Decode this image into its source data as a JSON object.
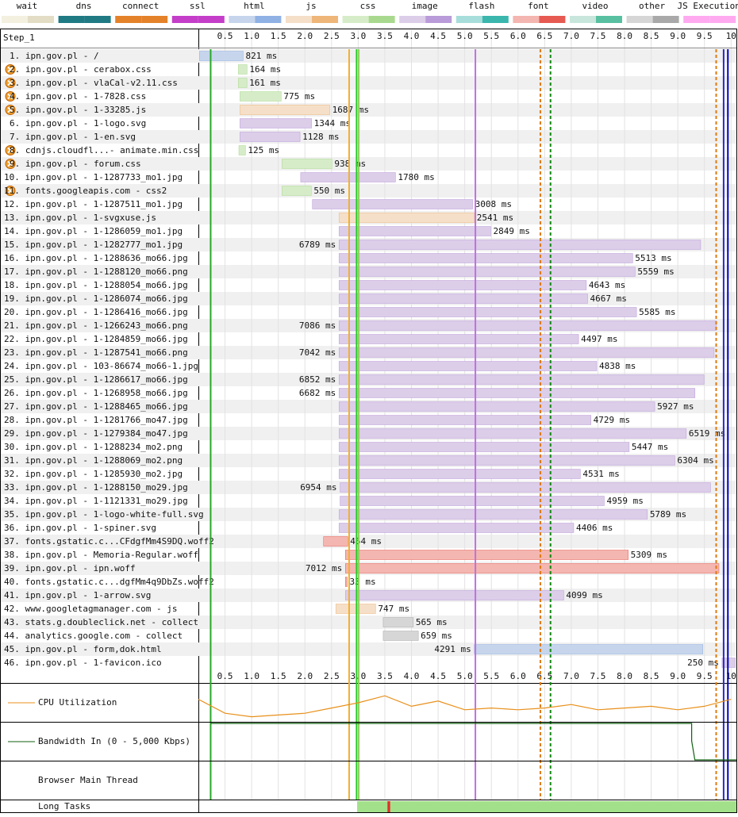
{
  "chart_data": {
    "type": "waterfall",
    "step_label": "Step_1",
    "legend": [
      {
        "name": "wait",
        "colors": [
          "#f3f0e0",
          "#e2ddc4"
        ]
      },
      {
        "name": "dns",
        "colors": [
          "#1f7a84",
          "#1f7a84"
        ]
      },
      {
        "name": "connect",
        "colors": [
          "#e4822a",
          "#e4822a"
        ]
      },
      {
        "name": "ssl",
        "colors": [
          "#c43ec9",
          "#c43ec9"
        ]
      },
      {
        "name": "html",
        "colors": [
          "#c6d5ec",
          "#8fb1e4"
        ]
      },
      {
        "name": "js",
        "colors": [
          "#f5dfc8",
          "#eeb679"
        ]
      },
      {
        "name": "css",
        "colors": [
          "#d6ecc8",
          "#a9d98e"
        ]
      },
      {
        "name": "image",
        "colors": [
          "#dccde9",
          "#b99bd9"
        ]
      },
      {
        "name": "flash",
        "colors": [
          "#a7dedb",
          "#3ab6ad"
        ]
      },
      {
        "name": "font",
        "colors": [
          "#f4b6b0",
          "#e65a52"
        ]
      },
      {
        "name": "video",
        "colors": [
          "#c8e6dc",
          "#58c0a0"
        ]
      },
      {
        "name": "other",
        "colors": [
          "#d6d6d6",
          "#a9a9a9"
        ]
      },
      {
        "name": "JS Execution",
        "colors": [
          "#ffaaf0",
          "#ffaaf0"
        ]
      }
    ],
    "xlim": [
      0,
      10.1
    ],
    "xticks": [
      0.5,
      {
        "value": 1,
        "label": "1.0"
      },
      1.5,
      {
        "value": 2,
        "label": "2.0"
      },
      2.5,
      {
        "value": 3,
        "label": "3.0"
      },
      3.5,
      {
        "value": 4,
        "label": "4.0"
      },
      4.5,
      {
        "value": 5,
        "label": "5.0"
      },
      5.5,
      {
        "value": 6,
        "label": "6.0"
      },
      6.5,
      {
        "value": 7,
        "label": "7.0"
      },
      7.5,
      {
        "value": 8,
        "label": "8.0"
      },
      8.5,
      {
        "value": 9,
        "label": "9.0"
      },
      9.5,
      10
    ],
    "requests": [
      {
        "label": "1. ipn.gov.pl - /",
        "start": 0.02,
        "duration": 821,
        "duration_label": "821 ms",
        "kind": "html",
        "warning": false
      },
      {
        "label": "2. ipn.gov.pl - cerabox.css",
        "start": 0.75,
        "duration": 164,
        "duration_label": "164 ms",
        "kind": "css",
        "warning": true
      },
      {
        "label": "3. ipn.gov.pl - vlaCal-v2.11.css",
        "start": 0.75,
        "duration": 161,
        "duration_label": "161 ms",
        "kind": "css",
        "warning": true
      },
      {
        "label": "4. ipn.gov.pl - 1-7828.css",
        "start": 0.78,
        "duration": 775,
        "duration_label": "775 ms",
        "kind": "css",
        "warning": true
      },
      {
        "label": "5. ipn.gov.pl - 1-33285.js",
        "start": 0.78,
        "duration": 1687,
        "duration_label": "1687 ms",
        "kind": "js",
        "warning": true
      },
      {
        "label": "6. ipn.gov.pl - 1-logo.svg",
        "start": 0.78,
        "duration": 1344,
        "duration_label": "1344 ms",
        "kind": "image",
        "warning": false
      },
      {
        "label": "7. ipn.gov.pl - 1-en.svg",
        "start": 0.78,
        "duration": 1128,
        "duration_label": "1128 ms",
        "kind": "image",
        "warning": false
      },
      {
        "label": "8. cdnjs.cloudfl...- animate.min.css",
        "start": 0.76,
        "duration": 125,
        "duration_label": "125 ms",
        "kind": "css",
        "warning": true
      },
      {
        "label": "9. ipn.gov.pl - forum.css",
        "start": 1.57,
        "duration": 938,
        "duration_label": "938 ms",
        "kind": "css",
        "warning": true
      },
      {
        "label": "10. ipn.gov.pl - 1-1287733_mo1.jpg",
        "start": 1.92,
        "duration": 1780,
        "duration_label": "1780 ms",
        "kind": "image",
        "warning": false
      },
      {
        "label": "11. fonts.googleapis.com - css2",
        "start": 1.57,
        "duration": 550,
        "duration_label": "550 ms",
        "kind": "css",
        "warning": true
      },
      {
        "label": "12. ipn.gov.pl - 1-1287511_mo1.jpg",
        "start": 2.14,
        "duration": 3008,
        "duration_label": "3008 ms",
        "kind": "image",
        "warning": false
      },
      {
        "label": "13. ipn.gov.pl - 1-svgxuse.js",
        "start": 2.64,
        "duration": 2541,
        "duration_label": "2541 ms",
        "kind": "js",
        "warning": false
      },
      {
        "label": "14. ipn.gov.pl - 1-1286059_mo1.jpg",
        "start": 2.64,
        "duration": 2849,
        "duration_label": "2849 ms",
        "kind": "image",
        "warning": false
      },
      {
        "label": "15. ipn.gov.pl - 1-1282777_mo1.jpg",
        "start": 2.64,
        "duration": 6789,
        "duration_label": "6789 ms",
        "kind": "image",
        "warning": false
      },
      {
        "label": "16. ipn.gov.pl - 1-1288636_mo66.jpg",
        "start": 2.64,
        "duration": 5513,
        "duration_label": "5513 ms",
        "kind": "image",
        "warning": false
      },
      {
        "label": "17. ipn.gov.pl - 1-1288120_mo66.png",
        "start": 2.64,
        "duration": 5559,
        "duration_label": "5559 ms",
        "kind": "image",
        "warning": false
      },
      {
        "label": "18. ipn.gov.pl - 1-1288054_mo66.jpg",
        "start": 2.64,
        "duration": 4643,
        "duration_label": "4643 ms",
        "kind": "image",
        "warning": false
      },
      {
        "label": "19. ipn.gov.pl - 1-1286074_mo66.jpg",
        "start": 2.64,
        "duration": 4667,
        "duration_label": "4667 ms",
        "kind": "image",
        "warning": false
      },
      {
        "label": "20. ipn.gov.pl - 1-1286416_mo66.jpg",
        "start": 2.64,
        "duration": 5585,
        "duration_label": "5585 ms",
        "kind": "image",
        "warning": false
      },
      {
        "label": "21. ipn.gov.pl - 1-1266243_mo66.png",
        "start": 2.64,
        "duration": 7086,
        "duration_label": "7086 ms",
        "kind": "image",
        "warning": false
      },
      {
        "label": "22. ipn.gov.pl - 1-1284859_mo66.jpg",
        "start": 2.64,
        "duration": 4497,
        "duration_label": "4497 ms",
        "kind": "image",
        "warning": false
      },
      {
        "label": "23. ipn.gov.pl - 1-1287541_mo66.png",
        "start": 2.64,
        "duration": 7042,
        "duration_label": "7042 ms",
        "kind": "image",
        "warning": false
      },
      {
        "label": "24. ipn.gov.pl - 103-86674_mo66-1.jpg",
        "start": 2.64,
        "duration": 4838,
        "duration_label": "4838 ms",
        "kind": "image",
        "warning": false
      },
      {
        "label": "25. ipn.gov.pl - 1-1286617_mo66.jpg",
        "start": 2.64,
        "duration": 6852,
        "duration_label": "6852 ms",
        "kind": "image",
        "warning": false
      },
      {
        "label": "26. ipn.gov.pl - 1-1268958_mo66.jpg",
        "start": 2.64,
        "duration": 6682,
        "duration_label": "6682 ms",
        "kind": "image",
        "warning": false
      },
      {
        "label": "27. ipn.gov.pl - 1-1288465_mo66.jpg",
        "start": 2.64,
        "duration": 5927,
        "duration_label": "5927 ms",
        "kind": "image",
        "warning": false
      },
      {
        "label": "28. ipn.gov.pl - 1-1281766_mo47.jpg",
        "start": 2.64,
        "duration": 4729,
        "duration_label": "4729 ms",
        "kind": "image",
        "warning": false
      },
      {
        "label": "29. ipn.gov.pl - 1-1279384_mo47.jpg",
        "start": 2.64,
        "duration": 6519,
        "duration_label": "6519 ms",
        "kind": "image",
        "warning": false
      },
      {
        "label": "30. ipn.gov.pl - 1-1288234_mo2.png",
        "start": 2.64,
        "duration": 5447,
        "duration_label": "5447 ms",
        "kind": "image",
        "warning": false
      },
      {
        "label": "31. ipn.gov.pl - 1-1288069_mo2.png",
        "start": 2.64,
        "duration": 6304,
        "duration_label": "6304 ms",
        "kind": "image",
        "warning": false
      },
      {
        "label": "32. ipn.gov.pl - 1-1285930_mo2.jpg",
        "start": 2.64,
        "duration": 4531,
        "duration_label": "4531 ms",
        "kind": "image",
        "warning": false
      },
      {
        "label": "33. ipn.gov.pl - 1-1288150_mo29.jpg",
        "start": 2.66,
        "duration": 6954,
        "duration_label": "6954 ms",
        "kind": "image",
        "warning": false
      },
      {
        "label": "34. ipn.gov.pl - 1-1121331_mo29.jpg",
        "start": 2.66,
        "duration": 4959,
        "duration_label": "4959 ms",
        "kind": "image",
        "warning": false
      },
      {
        "label": "35. ipn.gov.pl - 1-logo-white-full.svg",
        "start": 2.64,
        "duration": 5789,
        "duration_label": "5789 ms",
        "kind": "image",
        "warning": false
      },
      {
        "label": "36. ipn.gov.pl - 1-spiner.svg",
        "start": 2.64,
        "duration": 4406,
        "duration_label": "4406 ms",
        "kind": "image",
        "warning": false
      },
      {
        "label": "37. fonts.gstatic.c...CFdgfMm4S9DQ.woff2",
        "start": 2.35,
        "duration": 454,
        "duration_label": "454 ms",
        "kind": "font",
        "warning": false
      },
      {
        "label": "38. ipn.gov.pl - Memoria-Regular.woff",
        "start": 2.76,
        "duration": 5309,
        "duration_label": "5309 ms",
        "kind": "font",
        "warning": false
      },
      {
        "label": "39. ipn.gov.pl - ipn.woff",
        "start": 2.76,
        "duration": 7012,
        "duration_label": "7012 ms",
        "kind": "font",
        "warning": false
      },
      {
        "label": "40. fonts.gstatic.c...dgfMm4q9DbZs.woff2",
        "start": 2.76,
        "duration": 33,
        "duration_label": "33 ms",
        "kind": "font",
        "warning": false
      },
      {
        "label": "41. ipn.gov.pl - 1-arrow.svg",
        "start": 2.76,
        "duration": 4099,
        "duration_label": "4099 ms",
        "kind": "image",
        "warning": false
      },
      {
        "label": "42. www.googletagmanager.com - js",
        "start": 2.58,
        "duration": 747,
        "duration_label": "747 ms",
        "kind": "js",
        "warning": false
      },
      {
        "label": "43. stats.g.doubleclick.net - collect",
        "start": 3.47,
        "duration": 565,
        "duration_label": "565 ms",
        "kind": "other",
        "warning": false
      },
      {
        "label": "44. analytics.google.com - collect",
        "start": 3.47,
        "duration": 659,
        "duration_label": "659 ms",
        "kind": "other",
        "warning": false
      },
      {
        "label": "45. ipn.gov.pl - form,dok.html",
        "start": 5.18,
        "duration": 4291,
        "duration_label": "4291 ms",
        "kind": "html",
        "warning": false
      },
      {
        "label": "46. ipn.gov.pl - 1-favicon.ico",
        "start": 9.83,
        "duration": 250,
        "duration_label": "250 ms",
        "kind": "image",
        "warning": false
      }
    ],
    "markers": [
      {
        "value": 0.23,
        "color": "#28a828",
        "dashed": false
      },
      {
        "value": 2.83,
        "color": "#f0b030",
        "dashed": false
      },
      {
        "value": 2.97,
        "color": "#28c828",
        "dashed": false
      },
      {
        "value": 3.01,
        "color": "#90d060",
        "dashed": false
      },
      {
        "value": 5.2,
        "color": "#c070e0",
        "dashed": false
      },
      {
        "value": 6.42,
        "color": "#e07a10",
        "dashed": true
      },
      {
        "value": 6.61,
        "color": "#108810",
        "dashed": true
      },
      {
        "value": 9.72,
        "color": "#e07a10",
        "dashed": true
      },
      {
        "value": 9.86,
        "color": "#2828d0",
        "dashed": false
      },
      {
        "value": 9.94,
        "color": "#0000c0",
        "dashed": false
      }
    ],
    "cpu": {
      "label": "CPU Utilization",
      "color": "#e8901a",
      "ylim": [
        0,
        100
      ],
      "x": [
        0,
        0.5,
        1,
        1.5,
        2,
        2.5,
        3,
        3.5,
        4,
        4.5,
        5,
        5.5,
        6,
        6.5,
        7,
        7.5,
        8,
        8.5,
        9,
        9.5,
        10
      ],
      "values": [
        60,
        20,
        10,
        15,
        20,
        35,
        50,
        70,
        40,
        55,
        30,
        35,
        30,
        35,
        45,
        30,
        35,
        40,
        30,
        40,
        60
      ]
    },
    "bandwidth": {
      "label": "Bandwidth In (0 - 5,000 Kbps)",
      "color": "#106010",
      "ylim": [
        0,
        5000
      ],
      "x": [
        0.23,
        9.2,
        9.26,
        9.26,
        9.32,
        10.1
      ],
      "values": [
        5000,
        5000,
        5000,
        2600,
        0,
        0
      ]
    },
    "main_thread": {
      "label": "Browser Main Thread"
    },
    "long_tasks": {
      "label": "Long Tasks",
      "spans": [
        {
          "start": 2.98,
          "end": 10.1,
          "color": "#a3e08a"
        },
        {
          "start": 3.55,
          "end": 3.6,
          "color": "#e0302a"
        }
      ]
    }
  }
}
